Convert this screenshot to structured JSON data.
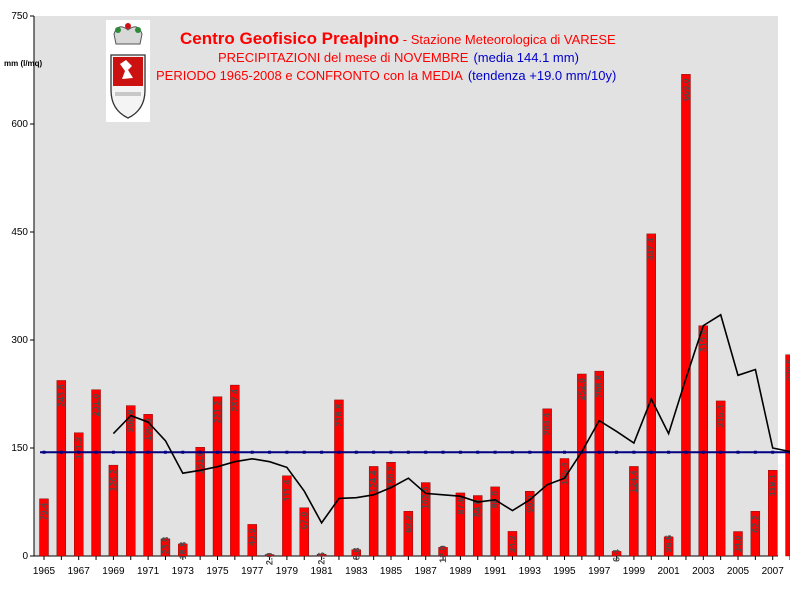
{
  "header": {
    "org": "Centro Geofisico Prealpino",
    "sep": " - ",
    "station": "Stazione Meteorologica di VARESE",
    "line2_red": "PRECIPITAZIONI del mese di NOVEMBRE",
    "line2_blue": "(media 144.1 mm)",
    "line3_red": "PERIODO 1965-2008 e CONFRONTO con la MEDIA",
    "line3_blue": "(tendenza +19.0 mm/10y)"
  },
  "colors": {
    "bar": "#ff0000",
    "mean_line": "#000080",
    "trend_line": "#000000",
    "plot_bg": "#e2e2e2",
    "title_red": "#ff0000",
    "title_blue": "#0000cc"
  },
  "chart_data": {
    "type": "bar",
    "ylabel": "mm (l/mq)",
    "ylim": [
      0,
      750
    ],
    "yticks": [
      0,
      150,
      300,
      450,
      600,
      750
    ],
    "grid": false,
    "years": [
      1965,
      1966,
      1967,
      1968,
      1969,
      1970,
      1971,
      1972,
      1973,
      1974,
      1975,
      1976,
      1977,
      1978,
      1979,
      1980,
      1981,
      1982,
      1983,
      1984,
      1985,
      1986,
      1987,
      1988,
      1989,
      1990,
      1991,
      1992,
      1993,
      1994,
      1995,
      1996,
      1997,
      1998,
      1999,
      2000,
      2001,
      2002,
      2003,
      2004,
      2005,
      2006,
      2007,
      2008
    ],
    "xtick_labels": [
      "1965",
      "1967",
      "1969",
      "1971",
      "1973",
      "1975",
      "1977",
      "1979",
      "1981",
      "1983",
      "1985",
      "1987",
      "1989",
      "1991",
      "1993",
      "1995",
      "1997",
      "1999",
      "2001",
      "2003",
      "2005",
      "2007"
    ],
    "series": [
      {
        "values": [
          79.4,
          243.8,
          171.2,
          231.0,
          126.2,
          208.9,
          196.8,
          23.8,
          16.8,
          151.0,
          221.2,
          237.4,
          43.9,
          2.0,
          111.4,
          67.0,
          2.6,
          216.8,
          8.8,
          124.4,
          130.2,
          62.2,
          102.0,
          12.0,
          87.6,
          84.0,
          96.0,
          34.2,
          90.0,
          204.4,
          135.4,
          252.8,
          256.8,
          6.4,
          124.4,
          447.4,
          26.6,
          669.0,
          319.8,
          215.4,
          34.0,
          62.2,
          119.1,
          279.5
        ],
        "labels": [
          "79.4",
          "243.8",
          "171.2",
          "231.0",
          "126.2",
          "208.9",
          "196.8",
          "23.8",
          "16.8",
          "151.0",
          "221.2",
          "237.4",
          "43.9",
          "2.0",
          "111.4",
          "67.0",
          "2.6",
          "216.8",
          "8.8",
          "124.4",
          "130.2",
          "62.2",
          "102.0",
          "12.0",
          "87.6",
          "84.0",
          "96.0",
          "34.2",
          "90.0",
          "204.4",
          "135.4",
          "252.8",
          "256.8",
          "6.4",
          "124.4",
          "447.4",
          "26.6",
          "669.0",
          "319.8",
          "215.4",
          "34.0",
          "62.2",
          "119.1",
          "279.5"
        ]
      },
      {
        "type": "line",
        "start_year": 1969,
        "values": [
          170,
          195,
          186,
          160,
          115,
          119,
          124,
          131,
          135,
          131,
          123,
          90,
          46,
          80,
          81,
          85,
          95,
          108,
          87,
          85,
          83,
          75,
          78,
          63,
          78,
          99,
          108,
          145,
          188,
          173,
          157,
          218,
          170,
          247,
          320,
          335,
          251,
          259,
          150,
          145
        ]
      },
      {
        "type": "line",
        "values": [
          144.1,
          144.1
        ]
      }
    ]
  }
}
